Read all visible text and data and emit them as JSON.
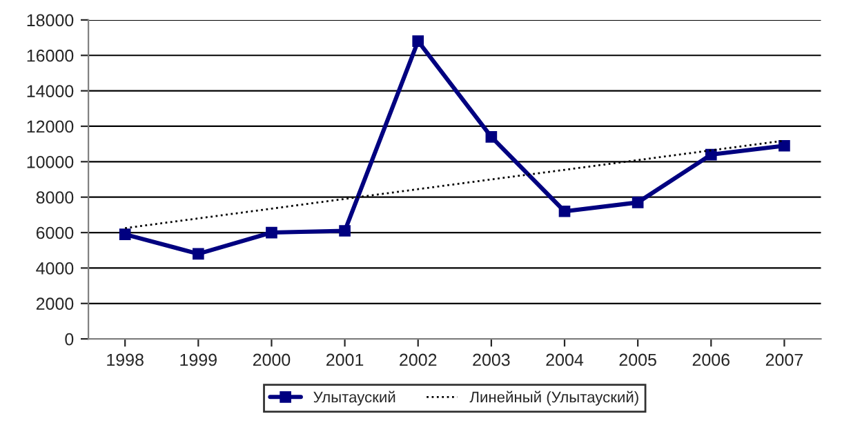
{
  "chart_data": {
    "type": "line",
    "categories": [
      "1998",
      "1999",
      "2000",
      "2001",
      "2002",
      "2003",
      "2004",
      "2005",
      "2006",
      "2007"
    ],
    "series": [
      {
        "name": "Улытауский",
        "color": "#000080",
        "values": [
          5900,
          4800,
          6000,
          6100,
          16800,
          11400,
          7200,
          7700,
          10400,
          10900
        ],
        "marker": "square",
        "line_style": "solid"
      },
      {
        "name": "Линейный (Улытауский)",
        "color": "#000000",
        "type": "line",
        "values": [
          6250,
          6800,
          7350,
          7900,
          8450,
          9000,
          9540,
          10090,
          10640,
          11190
        ],
        "marker": "none",
        "line_style": "dotted"
      }
    ],
    "ylim": [
      0,
      18000
    ],
    "yticks": [
      0,
      2000,
      4000,
      6000,
      8000,
      10000,
      12000,
      14000,
      16000,
      18000
    ],
    "grid": "y",
    "legend": "bottom"
  }
}
